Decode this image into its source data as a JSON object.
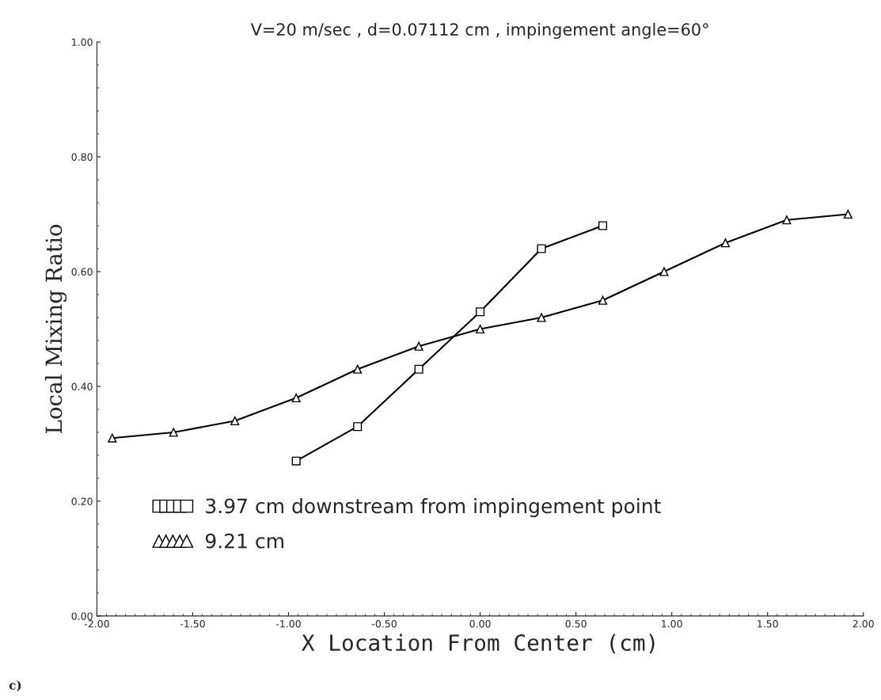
{
  "chart_data": {
    "type": "line",
    "title": "V=20 m/sec , d=0.07112 cm , impingement angle=60°",
    "xlabel": "X Location From Center (cm)",
    "ylabel": "Local Mixing Ratio",
    "xlim": [
      -2.0,
      2.0
    ],
    "xticks": [
      {
        "value": -2.0,
        "label": "-2.00"
      },
      {
        "value": -1.5,
        "label": "-1.50"
      },
      {
        "value": -1.0,
        "label": "-1.00"
      },
      {
        "value": -0.5,
        "label": "-0.50"
      },
      {
        "value": 0.0,
        "label": "0.00"
      },
      {
        "value": 0.5,
        "label": "0.50"
      },
      {
        "value": 1.0,
        "label": "1.00"
      },
      {
        "value": 1.5,
        "label": "1.50"
      },
      {
        "value": 2.0,
        "label": "2.00"
      }
    ],
    "ylim": [
      0.0,
      1.0
    ],
    "yticks": [
      {
        "value": 0.0,
        "label": "0.00"
      },
      {
        "value": 0.2,
        "label": "0.20"
      },
      {
        "value": 0.4,
        "label": "0.40"
      },
      {
        "value": 0.6,
        "label": "0.60"
      },
      {
        "value": 0.8,
        "label": "0.80"
      },
      {
        "value": 1.0,
        "label": "1.00"
      }
    ],
    "grid": false,
    "legend": "bottom left",
    "line_style": "solid",
    "series": [
      {
        "name": "3.97 cm downstream from impingement point",
        "color": "#000000",
        "marker": "square",
        "x": [
          -0.96,
          -0.64,
          -0.32,
          0.0,
          0.32,
          0.64
        ],
        "values": [
          0.27,
          0.33,
          0.43,
          0.53,
          0.64,
          0.68
        ]
      },
      {
        "name": "9.21 cm",
        "color": "#000000",
        "marker": "triangle",
        "x": [
          -1.92,
          -1.6,
          -1.28,
          -0.96,
          -0.64,
          -0.32,
          0.0,
          0.32,
          0.64,
          0.96,
          1.28,
          1.6,
          1.92
        ],
        "values": [
          0.31,
          0.32,
          0.34,
          0.38,
          0.43,
          0.47,
          0.5,
          0.52,
          0.55,
          0.6,
          0.65,
          0.69,
          0.7
        ]
      }
    ],
    "annotations": [
      "c)"
    ]
  }
}
